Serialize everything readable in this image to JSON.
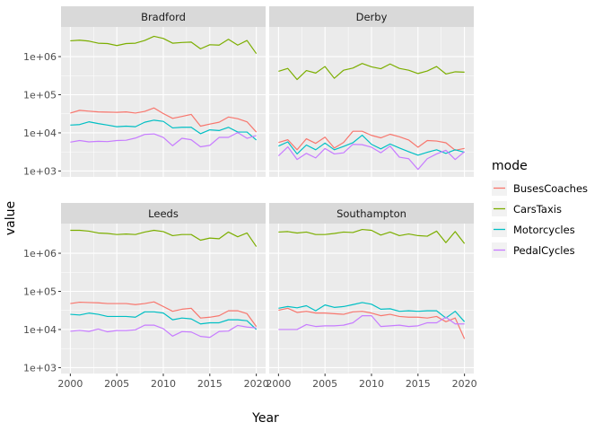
{
  "chart_data": {
    "type": "line",
    "facets": [
      "Bradford",
      "Derby",
      "Leeds",
      "Southampton"
    ],
    "x": [
      2000,
      2001,
      2002,
      2003,
      2004,
      2005,
      2006,
      2007,
      2008,
      2009,
      2010,
      2011,
      2012,
      2013,
      2014,
      2015,
      2016,
      2017,
      2018,
      2019,
      2020
    ],
    "x_ticks": [
      2000,
      2005,
      2010,
      2015,
      2020
    ],
    "x_tick_labels": [
      "2000",
      "2005",
      "2010",
      "2015",
      "2020"
    ],
    "y_scale": "log10",
    "ylim": [
      700,
      6000000
    ],
    "y_ticks": [
      1000,
      10000,
      100000,
      1000000
    ],
    "y_tick_labels": [
      "1e+03",
      "1e+04",
      "1e+05",
      "1e+06"
    ],
    "xlabel": "Year",
    "ylabel": "value",
    "legend": {
      "title": "mode",
      "placement": "right",
      "entries": [
        "BusesCoaches",
        "CarsTaxis",
        "Motorcycles",
        "PedalCycles"
      ]
    },
    "colors": {
      "BusesCoaches": "#F8766D",
      "CarsTaxis": "#7CAE00",
      "Motorcycles": "#00BFC4",
      "PedalCycles": "#C77CFF"
    },
    "grid": true,
    "panels": {
      "Bradford": {
        "BusesCoaches": [
          33000,
          39000,
          37000,
          35500,
          35000,
          34500,
          35500,
          33000,
          36500,
          45000,
          32000,
          24000,
          27000,
          30500,
          15000,
          17000,
          19000,
          26000,
          23500,
          19500,
          10500
        ],
        "CarsTaxis": [
          2600000,
          2700000,
          2550000,
          2250000,
          2200000,
          1950000,
          2200000,
          2250000,
          2650000,
          3400000,
          3000000,
          2250000,
          2350000,
          2400000,
          1600000,
          2050000,
          2000000,
          2850000,
          2000000,
          2650000,
          1200000
        ],
        "Motorcycles": [
          16000,
          16500,
          19500,
          17500,
          16000,
          14500,
          15000,
          14500,
          19000,
          21500,
          20000,
          13500,
          14000,
          14000,
          9500,
          12000,
          11500,
          14000,
          10500,
          10500,
          6500
        ],
        "PedalCycles": [
          5700,
          6300,
          5800,
          6000,
          5900,
          6300,
          6400,
          7300,
          9100,
          9400,
          7600,
          4600,
          7200,
          6600,
          4300,
          4700,
          7600,
          7600,
          10200,
          7200,
          8500
        ]
      },
      "Derby": {
        "BusesCoaches": [
          5600,
          6600,
          3600,
          7000,
          5300,
          7700,
          4000,
          5600,
          11000,
          11000,
          8600,
          7400,
          9200,
          7900,
          6500,
          4200,
          6300,
          6100,
          5500,
          3500,
          3900
        ],
        "CarsTaxis": [
          410000,
          490000,
          250000,
          430000,
          370000,
          550000,
          270000,
          440000,
          500000,
          660000,
          540000,
          480000,
          640000,
          490000,
          440000,
          360000,
          420000,
          550000,
          350000,
          400000,
          390000
        ],
        "Motorcycles": [
          4500,
          5800,
          2800,
          4800,
          3600,
          5400,
          3600,
          4400,
          5500,
          8700,
          5000,
          3800,
          5100,
          4000,
          3200,
          2600,
          3100,
          3600,
          2900,
          3600,
          3100
        ],
        "PedalCycles": [
          2500,
          4300,
          2000,
          2900,
          2200,
          3900,
          2800,
          3000,
          5000,
          4900,
          4200,
          3000,
          4500,
          2300,
          2100,
          1100,
          2100,
          2800,
          3500,
          2000,
          3200
        ]
      },
      "Leeds": {
        "BusesCoaches": [
          48000,
          52000,
          51000,
          50000,
          48000,
          48000,
          48000,
          45000,
          48000,
          53000,
          40000,
          30000,
          34000,
          36000,
          20000,
          21000,
          23000,
          31000,
          31000,
          26000,
          12000
        ],
        "CarsTaxis": [
          4000000,
          4000000,
          3800000,
          3400000,
          3300000,
          3100000,
          3200000,
          3100000,
          3600000,
          4000000,
          3700000,
          2900000,
          3100000,
          3100000,
          2200000,
          2500000,
          2400000,
          3600000,
          2700000,
          3400000,
          1500000
        ],
        "Motorcycles": [
          25000,
          24000,
          27000,
          25000,
          22000,
          22000,
          22000,
          21000,
          29000,
          29000,
          27000,
          18000,
          20000,
          19000,
          14000,
          15000,
          15000,
          18000,
          18000,
          17000,
          10000
        ],
        "PedalCycles": [
          9000,
          9500,
          8900,
          10300,
          8700,
          9400,
          9400,
          9800,
          13000,
          13000,
          10500,
          6700,
          8800,
          8600,
          6600,
          6200,
          8900,
          9100,
          12800,
          11600,
          11000
        ]
      },
      "Southampton": {
        "BusesCoaches": [
          32000,
          36000,
          28000,
          30000,
          27000,
          27000,
          26000,
          25000,
          29000,
          30000,
          27000,
          23000,
          25000,
          22000,
          21000,
          21000,
          20000,
          22000,
          16000,
          20000,
          5700
        ],
        "CarsTaxis": [
          3600000,
          3700000,
          3400000,
          3600000,
          3100000,
          3100000,
          3300000,
          3600000,
          3500000,
          4200000,
          4000000,
          3000000,
          3600000,
          2900000,
          3200000,
          2900000,
          2800000,
          3800000,
          1900000,
          3700000,
          1800000
        ],
        "Motorcycles": [
          36000,
          40000,
          37000,
          42000,
          31000,
          44000,
          38000,
          40000,
          45000,
          51000,
          46000,
          34000,
          35000,
          30000,
          31000,
          30000,
          31000,
          31000,
          20000,
          30000,
          16000
        ],
        "PedalCycles": [
          10000,
          10000,
          10000,
          13500,
          12000,
          12500,
          12500,
          13000,
          15000,
          23000,
          23000,
          12000,
          12500,
          13000,
          12000,
          12500,
          15000,
          15000,
          21000,
          14000,
          14000
        ]
      }
    }
  }
}
